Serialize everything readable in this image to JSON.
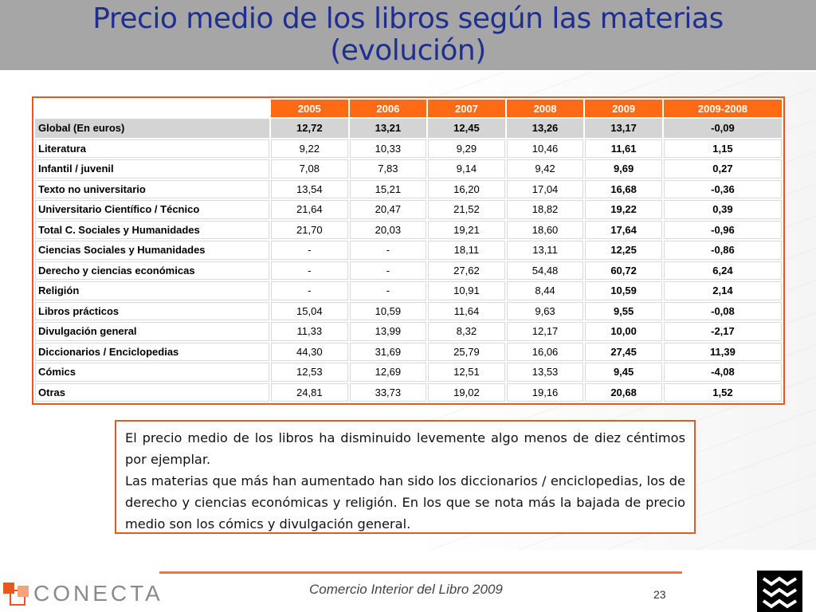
{
  "title": {
    "line1": "Precio medio de los libros según las materias",
    "line2": "(evolución)"
  },
  "table": {
    "headers": [
      "",
      "2005",
      "2006",
      "2007",
      "2008",
      "2009",
      "2009-2008"
    ],
    "rows": [
      [
        "Global (En euros)",
        "12,72",
        "13,21",
        "12,45",
        "13,26",
        "13,17",
        "-0,09"
      ],
      [
        "Literatura",
        "9,22",
        "10,33",
        "9,29",
        "10,46",
        "11,61",
        "1,15"
      ],
      [
        "Infantil / juvenil",
        "7,08",
        "7,83",
        "9,14",
        "9,42",
        "9,69",
        "0,27"
      ],
      [
        "Texto no universitario",
        "13,54",
        "15,21",
        "16,20",
        "17,04",
        "16,68",
        "-0,36"
      ],
      [
        "Universitario Científico / Técnico",
        "21,64",
        "20,47",
        "21,52",
        "18,82",
        "19,22",
        "0,39"
      ],
      [
        "Total C. Sociales y Humanidades",
        "21,70",
        "20,03",
        "19,21",
        "18,60",
        "17,64",
        "-0,96"
      ],
      [
        "Ciencias Sociales y Humanidades",
        "-",
        "-",
        "18,11",
        "13,11",
        "12,25",
        "-0,86"
      ],
      [
        "Derecho y ciencias económicas",
        "-",
        "-",
        "27,62",
        "54,48",
        "60,72",
        "6,24"
      ],
      [
        "Religión",
        "-",
        "-",
        "10,91",
        "8,44",
        "10,59",
        "2,14"
      ],
      [
        "Libros prácticos",
        "15,04",
        "10,59",
        "11,64",
        "9,63",
        "9,55",
        "-0,08"
      ],
      [
        "Divulgación general",
        "11,33",
        "13,99",
        "8,32",
        "12,17",
        "10,00",
        "-2,17"
      ],
      [
        "Diccionarios / Enciclopedias",
        "44,30",
        "31,69",
        "25,79",
        "16,06",
        "27,45",
        "11,39"
      ],
      [
        "Cómics",
        "12,53",
        "12,69",
        "12,51",
        "13,53",
        "9,45",
        "-4,08"
      ],
      [
        "Otras",
        "24,81",
        "33,73",
        "19,02",
        "19,16",
        "20,68",
        "1,52"
      ]
    ]
  },
  "note": {
    "p1": "El precio medio de los libros ha disminuido levemente algo menos de diez céntimos por ejemplar.",
    "p2": "Las materias que más han aumentado han sido los diccionarios / enciclopedias, los de derecho y ciencias económicas y religión. En los que se nota más la bajada de precio medio son los cómics y divulgación general."
  },
  "footer": {
    "logo_text": "CONECTA",
    "caption": "Comercio Interior del Libro 2009",
    "page_number": "23"
  },
  "colors": {
    "accent": "#ff6a14",
    "title": "#1f2f8f",
    "title_bar": "#a6a6a6"
  },
  "icons": [
    "conecta-logo-icon",
    "brand-mark-icon"
  ]
}
